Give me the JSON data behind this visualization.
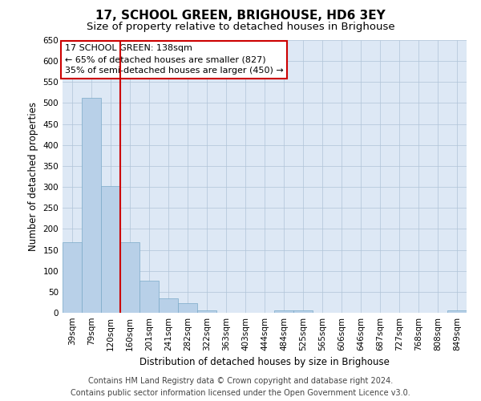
{
  "title": "17, SCHOOL GREEN, BRIGHOUSE, HD6 3EY",
  "subtitle": "Size of property relative to detached houses in Brighouse",
  "xlabel": "Distribution of detached houses by size in Brighouse",
  "ylabel": "Number of detached properties",
  "categories": [
    "39sqm",
    "79sqm",
    "120sqm",
    "160sqm",
    "201sqm",
    "241sqm",
    "282sqm",
    "322sqm",
    "363sqm",
    "403sqm",
    "444sqm",
    "484sqm",
    "525sqm",
    "565sqm",
    "606sqm",
    "646sqm",
    "687sqm",
    "727sqm",
    "768sqm",
    "808sqm",
    "849sqm"
  ],
  "values": [
    168,
    512,
    302,
    168,
    76,
    35,
    22,
    6,
    0,
    0,
    0,
    6,
    5,
    0,
    0,
    0,
    0,
    0,
    0,
    0,
    5
  ],
  "bar_color": "#b8d0e8",
  "bar_edge_color": "#7aaac8",
  "ylim": [
    0,
    650
  ],
  "yticks": [
    0,
    50,
    100,
    150,
    200,
    250,
    300,
    350,
    400,
    450,
    500,
    550,
    600,
    650
  ],
  "red_line_x": 2.5,
  "annotation_title": "17 SCHOOL GREEN: 138sqm",
  "annotation_line1": "← 65% of detached houses are smaller (827)",
  "annotation_line2": "35% of semi-detached houses are larger (450) →",
  "annotation_box_color": "#ffffff",
  "annotation_box_edge": "#cc0000",
  "red_line_color": "#cc0000",
  "footer1": "Contains HM Land Registry data © Crown copyright and database right 2024.",
  "footer2": "Contains public sector information licensed under the Open Government Licence v3.0.",
  "bg_color": "#ffffff",
  "plot_bg_color": "#dde8f5",
  "grid_color": "#b0c4d8",
  "title_fontsize": 11,
  "subtitle_fontsize": 9.5,
  "axis_label_fontsize": 8.5,
  "tick_fontsize": 7.5,
  "annotation_fontsize": 8,
  "footer_fontsize": 7
}
